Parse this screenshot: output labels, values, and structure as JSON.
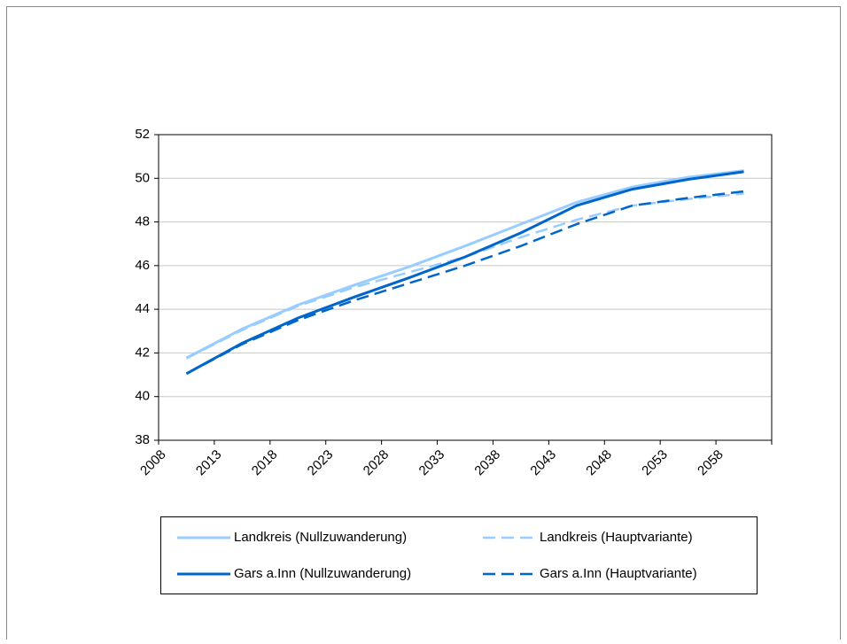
{
  "chart_data": {
    "type": "line",
    "categories": [
      "2008",
      "2013",
      "2018",
      "2023",
      "2028",
      "2033",
      "2038",
      "2043",
      "2048",
      "2053",
      "2058"
    ],
    "series": [
      {
        "name": "Landkreis (Nullzuwanderung)",
        "color": "#99ccff",
        "dash": false,
        "values": [
          41.77,
          43.1,
          44.2,
          45.1,
          45.95,
          46.9,
          47.9,
          48.9,
          49.6,
          50.05,
          50.35
        ]
      },
      {
        "name": "Landkreis (Hauptvariante)",
        "color": "#99ccff",
        "dash": true,
        "values": [
          41.75,
          43.05,
          44.15,
          45.0,
          45.7,
          46.4,
          47.3,
          48.1,
          48.75,
          49.05,
          49.3
        ]
      },
      {
        "name": "Gars a.Inn (Nullzuwanderung)",
        "color": "#0066cc",
        "dash": false,
        "values": [
          41.05,
          42.45,
          43.6,
          44.55,
          45.45,
          46.4,
          47.5,
          48.75,
          49.5,
          49.95,
          50.3
        ]
      },
      {
        "name": "Gars a.Inn (Hauptvariante)",
        "color": "#0066cc",
        "dash": true,
        "values": [
          41.05,
          42.4,
          43.5,
          44.4,
          45.2,
          46.0,
          46.9,
          47.9,
          48.75,
          49.1,
          49.4
        ]
      }
    ],
    "ylim": [
      38,
      52
    ],
    "yticks": [
      38,
      40,
      42,
      44,
      46,
      48,
      50,
      52
    ],
    "grid": true
  }
}
